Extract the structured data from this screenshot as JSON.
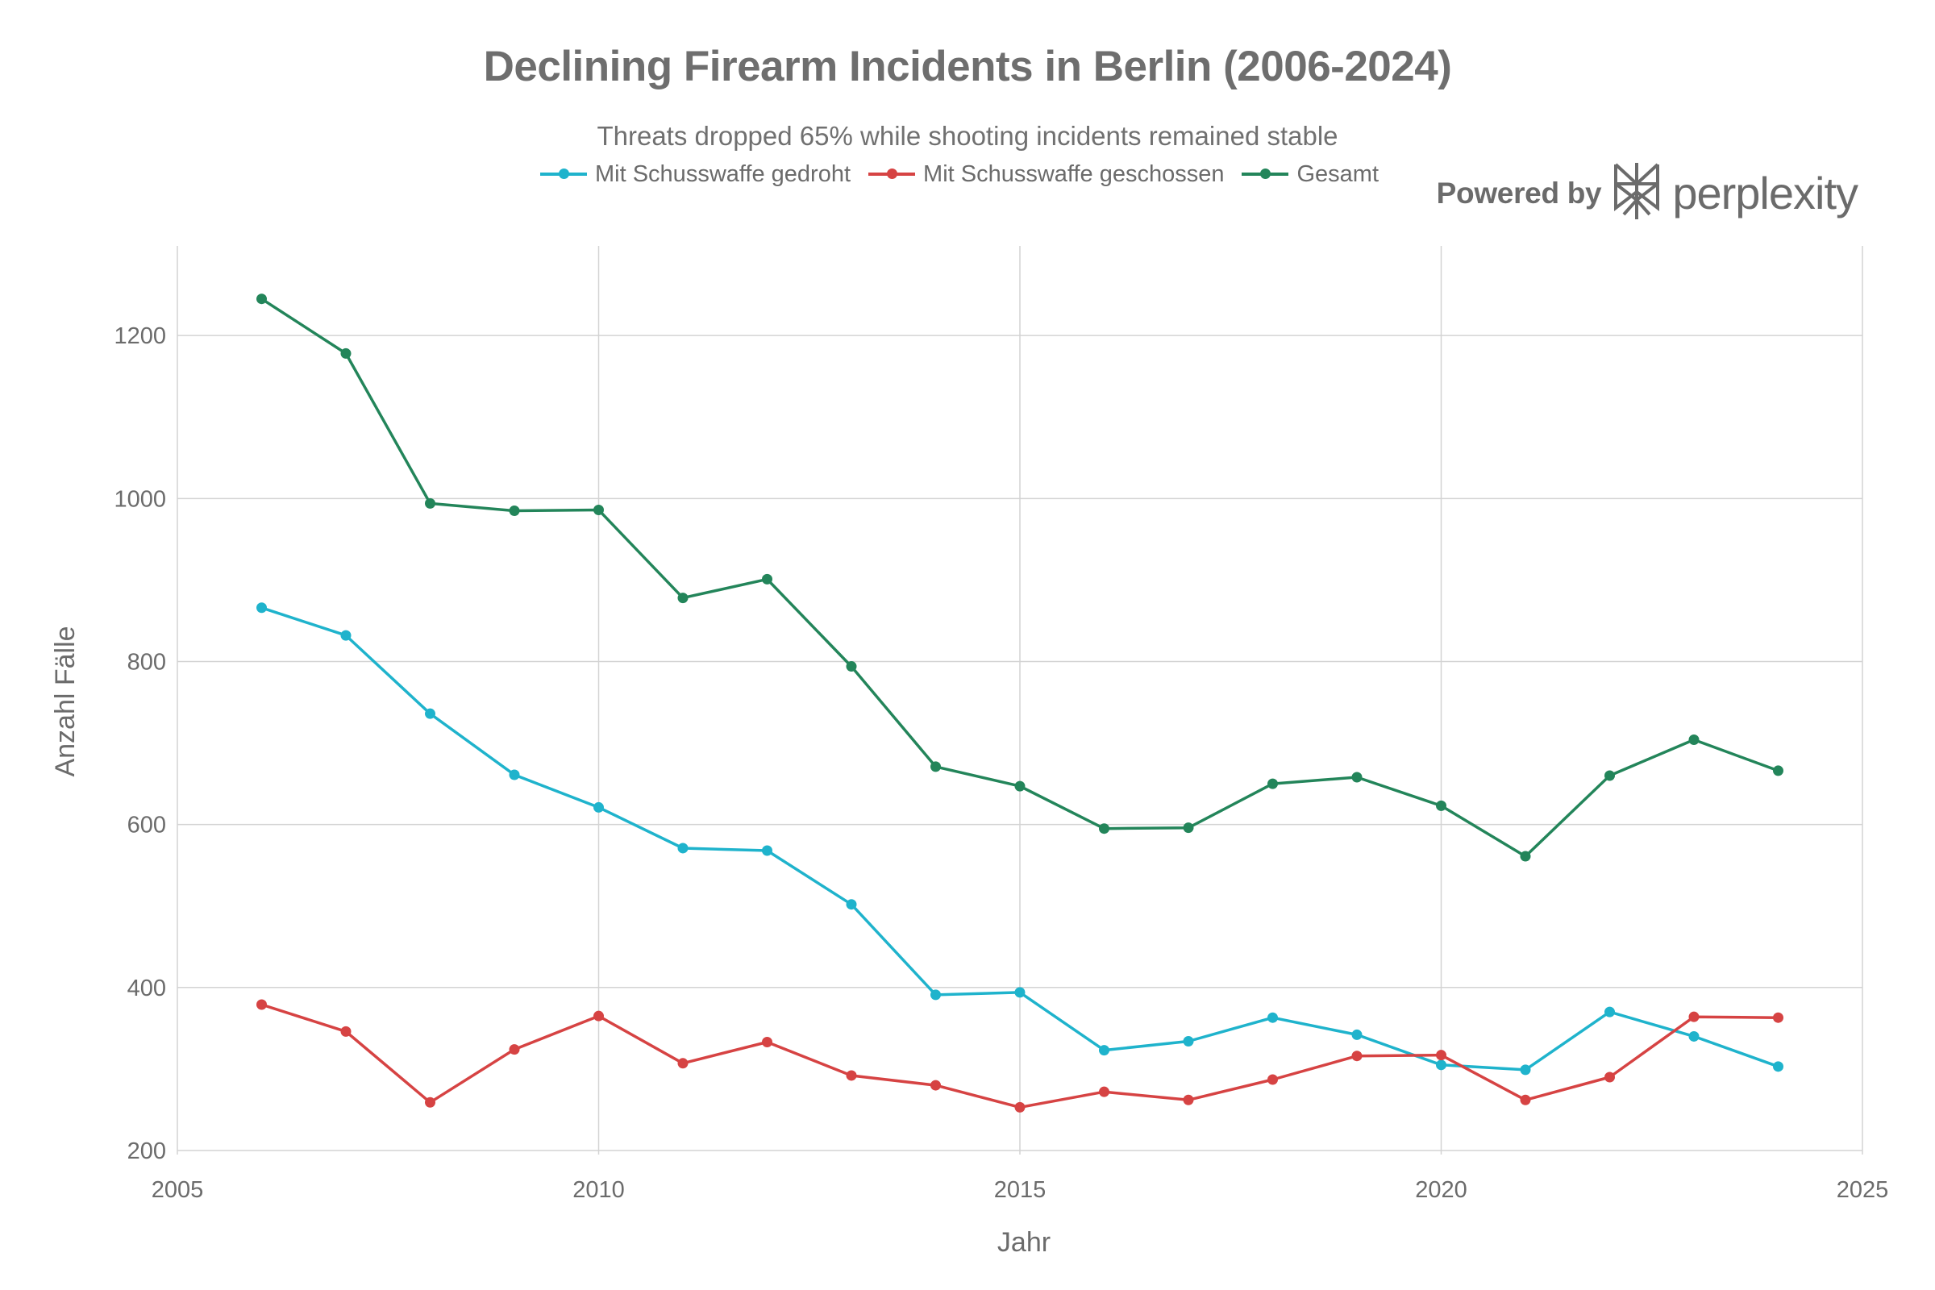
{
  "title": "Declining Firearm Incidents in Berlin (2006-2024)",
  "subtitle": "Threats dropped 65% while shooting incidents remained stable",
  "watermark": {
    "powered_label": "Powered by",
    "brand": "perplexity"
  },
  "colors": {
    "gedroht": "#1fb3cc",
    "geschossen": "#d64343",
    "gesamt": "#23855a",
    "grid": "#d3d3d3",
    "text": "#6b6b6b"
  },
  "chart_data": {
    "type": "line",
    "xlabel": "Jahr",
    "ylabel": "Anzahl Fälle",
    "xlim": [
      2005,
      2025
    ],
    "ylim": [
      195,
      1310
    ],
    "xticks": [
      2005,
      2010,
      2015,
      2020,
      2025
    ],
    "yticks": [
      200,
      400,
      600,
      800,
      1000,
      1200
    ],
    "grid": true,
    "legend_position": "top",
    "x": [
      2006,
      2007,
      2008,
      2009,
      2010,
      2011,
      2012,
      2013,
      2014,
      2015,
      2016,
      2017,
      2018,
      2019,
      2020,
      2021,
      2022,
      2023,
      2024
    ],
    "series": [
      {
        "name": "Mit Schusswaffe gedroht",
        "color": "#1fb3cc",
        "values": [
          866,
          832,
          736,
          661,
          621,
          571,
          568,
          502,
          391,
          394,
          323,
          334,
          363,
          342,
          305,
          299,
          370,
          340,
          303
        ]
      },
      {
        "name": "Mit Schusswaffe geschossen",
        "color": "#d64343",
        "values": [
          379,
          346,
          259,
          324,
          365,
          307,
          333,
          292,
          280,
          253,
          272,
          262,
          287,
          316,
          317,
          262,
          290,
          364,
          363
        ]
      },
      {
        "name": "Gesamt",
        "color": "#23855a",
        "values": [
          1245,
          1178,
          994,
          985,
          986,
          878,
          901,
          794,
          671,
          647,
          595,
          596,
          650,
          658,
          623,
          561,
          660,
          704,
          666
        ]
      }
    ]
  }
}
